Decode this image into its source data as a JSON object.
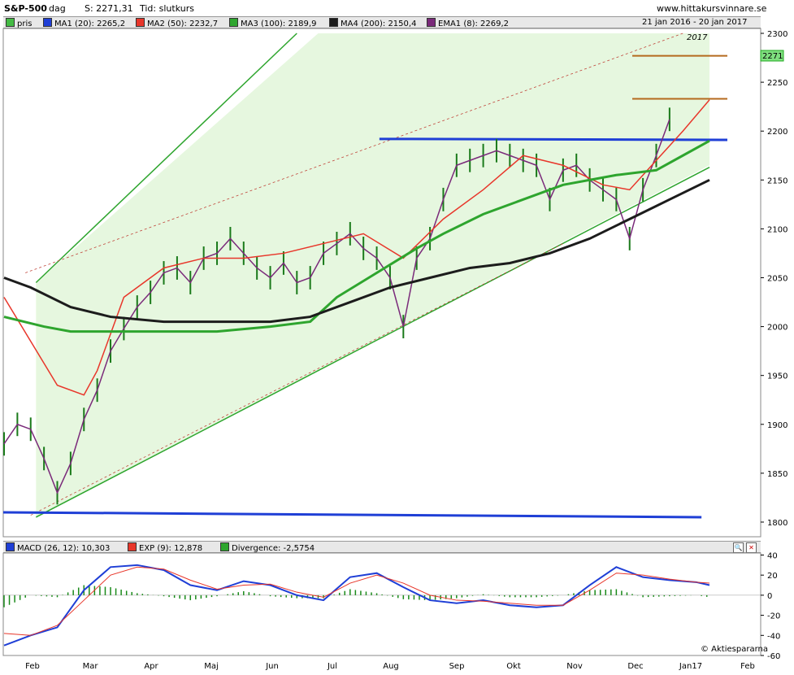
{
  "header": {
    "symbol": "S&P-500",
    "period": "dag",
    "last_label": "S: 2271,31",
    "type_label": "Tid: slutkurs",
    "site": "www.hittakursvinnare.se"
  },
  "legend_top": {
    "price": {
      "label": "pris",
      "color": "#44bb44"
    },
    "ma1": {
      "label": "MA1 (20): 2265,2",
      "color": "#1f3fd6"
    },
    "ma2": {
      "label": "MA2 (50): 2232,7",
      "color": "#e8362a"
    },
    "ma3": {
      "label": "MA3 (100): 2189,9",
      "color": "#2ea52e"
    },
    "ma4": {
      "label": "MA4 (200): 2150,4",
      "color": "#1c1c1c"
    },
    "ema1": {
      "label": "EMA1 (8): 2269,2",
      "color": "#7a2a7a"
    },
    "date_range": "21 jan 2016 - 20 jan 2017"
  },
  "legend_macd": {
    "macd": {
      "label": "MACD (26, 12): 10,303",
      "color": "#1f3fd6"
    },
    "exp": {
      "label": "EXP (9): 12,878",
      "color": "#e8362a"
    },
    "div": {
      "label": "Divergence: -2,5754",
      "color": "#2ea52e"
    }
  },
  "year_mark": "2017",
  "price_tag": "2271",
  "credit": "© Aktiespararna",
  "chart_data": [
    {
      "type": "line",
      "title": "S&P-500",
      "x_tick_labels": [
        "Feb",
        "Mar",
        "Apr",
        "Maj",
        "Jun",
        "Jul",
        "Aug",
        "Sep",
        "Okt",
        "Nov",
        "Dec",
        "Jan17",
        "Feb"
      ],
      "y_ticks": [
        1800,
        1850,
        1900,
        1950,
        2000,
        2050,
        2100,
        2150,
        2200,
        2250,
        2300
      ],
      "ylim": [
        1785,
        2305
      ],
      "grid": false,
      "series": [
        {
          "name": "pris",
          "x": [
            0,
            5,
            10,
            15,
            20,
            25,
            30,
            35,
            40,
            45,
            50,
            55,
            60,
            65,
            70,
            75,
            80,
            85,
            90,
            95,
            100,
            105,
            110,
            115,
            120,
            125,
            130,
            135,
            140,
            145,
            150,
            155,
            160,
            165,
            170,
            175,
            180,
            185,
            190,
            195,
            200,
            205,
            210,
            215,
            220,
            225,
            230,
            235,
            240,
            245,
            250
          ],
          "values": [
            1880,
            1900,
            1895,
            1865,
            1830,
            1860,
            1905,
            1935,
            1975,
            1998,
            2020,
            2035,
            2055,
            2060,
            2045,
            2070,
            2075,
            2090,
            2075,
            2060,
            2050,
            2065,
            2045,
            2050,
            2075,
            2085,
            2095,
            2080,
            2070,
            2050,
            2000,
            2070,
            2090,
            2130,
            2165,
            2170,
            2175,
            2180,
            2175,
            2170,
            2165,
            2130,
            2160,
            2165,
            2150,
            2140,
            2130,
            2090,
            2140,
            2175,
            2212
          ]
        },
        {
          "name": "MA1 (20)",
          "values_desc": "smoothed price"
        },
        {
          "name": "MA2 (50)",
          "x": [
            0,
            20,
            30,
            35,
            45,
            60,
            75,
            90,
            105,
            120,
            135,
            150,
            165,
            180,
            195,
            210,
            225,
            235,
            245,
            255,
            265
          ],
          "values": [
            2030,
            1940,
            1930,
            1955,
            2030,
            2060,
            2070,
            2070,
            2075,
            2085,
            2095,
            2070,
            2110,
            2140,
            2175,
            2165,
            2145,
            2140,
            2170,
            2200,
            2232
          ]
        },
        {
          "name": "MA3 (100)",
          "x": [
            0,
            15,
            25,
            40,
            60,
            80,
            100,
            115,
            125,
            140,
            155,
            165,
            180,
            195,
            210,
            230,
            245,
            255,
            265
          ],
          "values": [
            2010,
            2000,
            1995,
            1995,
            1995,
            1995,
            2000,
            2005,
            2030,
            2055,
            2080,
            2095,
            2115,
            2130,
            2145,
            2155,
            2160,
            2175,
            2190
          ]
        },
        {
          "name": "MA4 (200)",
          "x": [
            0,
            10,
            25,
            40,
            60,
            80,
            100,
            115,
            130,
            145,
            160,
            175,
            190,
            205,
            220,
            235,
            250,
            265
          ],
          "values": [
            2050,
            2040,
            2020,
            2010,
            2005,
            2005,
            2005,
            2010,
            2025,
            2040,
            2050,
            2060,
            2065,
            2075,
            2090,
            2110,
            2130,
            2150
          ]
        }
      ]
    },
    {
      "type": "bar",
      "title": "MACD",
      "y_ticks": [
        -60,
        -40,
        -20,
        0,
        20,
        40
      ],
      "ylim": [
        -60,
        42
      ],
      "series": [
        {
          "name": "MACD (26, 12)",
          "x": [
            0,
            10,
            20,
            30,
            40,
            50,
            60,
            70,
            80,
            90,
            100,
            110,
            120,
            130,
            140,
            150,
            160,
            170,
            180,
            190,
            200,
            210,
            220,
            230,
            240,
            250,
            260,
            265
          ],
          "values": [
            -50,
            -40,
            -32,
            5,
            28,
            30,
            25,
            10,
            5,
            14,
            10,
            0,
            -5,
            18,
            22,
            8,
            -5,
            -8,
            -5,
            -10,
            -12,
            -10,
            10,
            28,
            18,
            15,
            13,
            10
          ]
        },
        {
          "name": "EXP (9)",
          "x": [
            0,
            10,
            20,
            30,
            40,
            50,
            60,
            70,
            80,
            90,
            100,
            110,
            120,
            130,
            140,
            150,
            160,
            170,
            180,
            190,
            200,
            210,
            220,
            230,
            240,
            250,
            260,
            265
          ],
          "values": [
            -38,
            -40,
            -30,
            -5,
            20,
            28,
            26,
            15,
            6,
            10,
            11,
            3,
            -2,
            12,
            20,
            12,
            0,
            -5,
            -6,
            -8,
            -10,
            -10,
            5,
            22,
            20,
            16,
            13,
            12
          ]
        }
      ]
    }
  ]
}
